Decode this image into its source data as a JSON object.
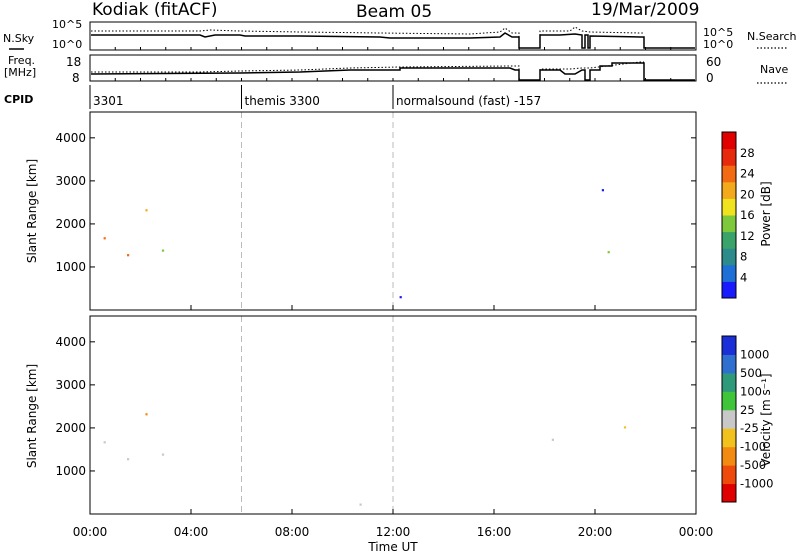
{
  "header": {
    "title": "Kodiak (fitACF)",
    "beam": "Beam 05",
    "date": "19/Mar/2009"
  },
  "noise_panel": {
    "left_label": "N.Sky",
    "right_label": "N.Search",
    "left_ticks": [
      "10^5",
      "10^0"
    ],
    "right_ticks": [
      "10^5",
      "10^0"
    ]
  },
  "freq_panel": {
    "left_label_1": "Freq.",
    "left_label_2": "[MHz]",
    "left_ticks": [
      "18",
      "8"
    ],
    "right_label": "Nave",
    "right_ticks": [
      "60",
      "0"
    ]
  },
  "cpid": {
    "label": "CPID",
    "segments": [
      {
        "start_hour": 0.0,
        "text": "3301"
      },
      {
        "start_hour": 6.0,
        "text": "themis 3300"
      },
      {
        "start_hour": 12.0,
        "text": "normalsound (fast) -157"
      }
    ]
  },
  "chart_data": [
    {
      "type": "heatmap",
      "name": "Power",
      "ylabel": "Slant Range [km]",
      "yticks": [
        "1000",
        "2000",
        "3000",
        "4000"
      ],
      "colorbar_label": "Power [dB]",
      "colorbar_ticks": [
        "4",
        "8",
        "12",
        "16",
        "20",
        "24",
        "28"
      ],
      "colorbar_colors": [
        "#1a1aff",
        "#1e6fd6",
        "#2e8b8b",
        "#3aa36a",
        "#7dc83b",
        "#f1e21e",
        "#f2a91c",
        "#f26a12",
        "#e82a0c",
        "#e00000"
      ]
    },
    {
      "type": "heatmap",
      "name": "Velocity",
      "ylabel": "Slant Range [km]",
      "yticks": [
        "1000",
        "2000",
        "3000",
        "4000"
      ],
      "xticks": [
        "00:00",
        "04:00",
        "08:00",
        "12:00",
        "16:00",
        "20:00",
        "00:00"
      ],
      "xlabel": "Time UT",
      "colorbar_label": "Velocity [m s⁻¹]",
      "colorbar_ticks": [
        "1000",
        "500",
        "100",
        "25",
        "-25",
        "-100",
        "-500",
        "-1000"
      ],
      "colorbar_colors": [
        "#1a2fd8",
        "#2f6fd0",
        "#2e9a7a",
        "#3fc43a",
        "#c8c8c8",
        "#f1c21e",
        "#f28a12",
        "#ee4a0c",
        "#e00000"
      ]
    }
  ]
}
